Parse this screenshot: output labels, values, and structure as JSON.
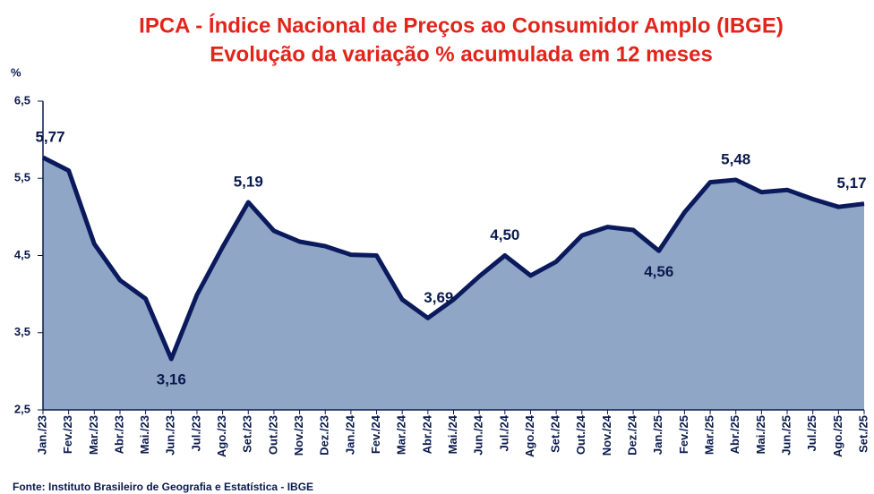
{
  "chart_data": {
    "type": "area",
    "title": "IPCA - Índice Nacional de Preços ao Consumidor Amplo (IBGE)",
    "subtitle": "Evolução da variação % acumulada em 12 meses",
    "y_label": "%",
    "source": "Fonte:  Instituto Brasileiro de Geografia e Estatística - IBGE",
    "categories": [
      "Jan./23",
      "Fev./23",
      "Mar./23",
      "Abr./23",
      "Mai./23",
      "Jun./23",
      "Jul./23",
      "Ago./23",
      "Set./23",
      "Out./23",
      "Nov./23",
      "Dez./23",
      "Jan./24",
      "Fev./24",
      "Mar./24",
      "Abr./24",
      "Mai./24",
      "Jun./24",
      "Jul./24",
      "Ago./24",
      "Set./24",
      "Out./24",
      "Nov./24",
      "Dez./24",
      "Jan./25",
      "Fev./25",
      "Mar./25",
      "Abr./25",
      "Mai./25",
      "Jun./25",
      "Jul./25",
      "Ago./25",
      "Set./25"
    ],
    "values": [
      5.77,
      5.6,
      4.65,
      4.18,
      3.94,
      3.16,
      3.99,
      4.61,
      5.19,
      4.82,
      4.68,
      4.62,
      4.51,
      4.5,
      3.93,
      3.69,
      3.93,
      4.23,
      4.5,
      4.24,
      4.42,
      4.76,
      4.87,
      4.83,
      4.56,
      5.06,
      5.45,
      5.48,
      5.32,
      5.35,
      5.23,
      5.13,
      5.17
    ],
    "value_labels": [
      "5,77",
      null,
      null,
      null,
      null,
      "3,16",
      null,
      null,
      "5,19",
      null,
      null,
      null,
      null,
      null,
      null,
      "3,69",
      null,
      null,
      "4,50",
      null,
      null,
      null,
      null,
      null,
      "4,56",
      null,
      null,
      "5,48",
      null,
      null,
      null,
      null,
      "5,17"
    ],
    "fill_color": "#8fa6c7",
    "line_color": "#0a1a5c",
    "ylim": [
      2.5,
      6.5
    ],
    "yticks": [
      {
        "value": 2.5,
        "label": "2,5"
      },
      {
        "value": 3.5,
        "label": "3,5"
      },
      {
        "value": 4.5,
        "label": "4,5"
      },
      {
        "value": 5.5,
        "label": "5,5"
      },
      {
        "value": 6.5,
        "label": "6,5"
      }
    ]
  }
}
